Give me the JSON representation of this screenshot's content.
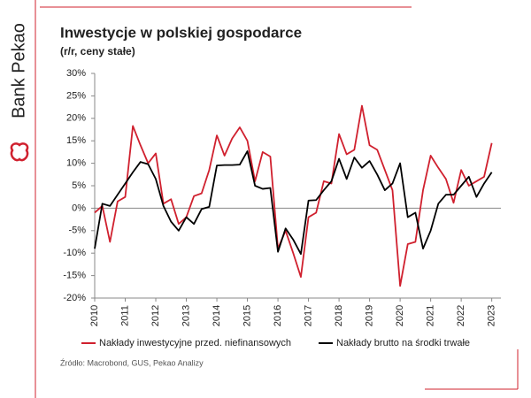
{
  "brand": "Bank Pekao",
  "chart_data": {
    "type": "line",
    "title": "Inwestycje w polskiej gospodarce",
    "subtitle": "(r/r, ceny stałe)",
    "source": "Źródło: Macrobond, GUS, Pekao Analizy",
    "x": [
      2010.0,
      2010.25,
      2010.5,
      2010.75,
      2011.0,
      2011.25,
      2011.5,
      2011.75,
      2012.0,
      2012.25,
      2012.5,
      2012.75,
      2013.0,
      2013.25,
      2013.5,
      2013.75,
      2014.0,
      2014.25,
      2014.5,
      2014.75,
      2015.0,
      2015.25,
      2015.5,
      2015.75,
      2016.0,
      2016.25,
      2016.5,
      2016.75,
      2017.0,
      2017.25,
      2017.5,
      2017.75,
      2018.0,
      2018.25,
      2018.5,
      2018.75,
      2019.0,
      2019.25,
      2019.5,
      2019.75,
      2020.0,
      2020.25,
      2020.5,
      2020.75,
      2021.0,
      2021.25,
      2021.5,
      2021.75,
      2022.0,
      2022.25,
      2022.5,
      2022.75,
      2023.0
    ],
    "series": [
      {
        "name": "Nakłady inwestycyjne przed. niefinansowych",
        "color": "#d0202e",
        "values": [
          -1,
          0.5,
          -7.5,
          1.5,
          2.5,
          18.3,
          14,
          10,
          12.2,
          1,
          2,
          -3.5,
          -2,
          2.7,
          3.3,
          8.5,
          16.2,
          11.7,
          15.5,
          18,
          15,
          6,
          12.5,
          11.5,
          -9,
          -5,
          -10,
          -15.3,
          -2,
          -1,
          6,
          5.5,
          16.5,
          12,
          13,
          22.8,
          14,
          13,
          8.5,
          4,
          -17.3,
          -8,
          -7.5,
          4,
          11.7,
          9,
          6.5,
          1.2,
          8.5,
          5,
          6,
          7,
          14.5
        ]
      },
      {
        "name": "Nakłady brutto na środki trwałe",
        "color": "#000000",
        "values": [
          -9,
          1,
          0.5,
          3,
          5.5,
          8,
          10.3,
          9.8,
          6.5,
          0.5,
          -3,
          -5,
          -2,
          -3.5,
          -0.2,
          0.3,
          9.5,
          9.6,
          9.6,
          9.7,
          12.7,
          5,
          4.3,
          4.5,
          -9.7,
          -4.5,
          -7,
          -10.2,
          1.7,
          1.8,
          4,
          6,
          11,
          6.5,
          11.3,
          9,
          10.5,
          7.5,
          4,
          5.5,
          10,
          -2,
          -1,
          -9,
          -5,
          1,
          3,
          3,
          5,
          7,
          2.5,
          5.5,
          8
        ]
      }
    ],
    "xlim": [
      2010,
      2023.3
    ],
    "xticks": [
      2010,
      2011,
      2012,
      2013,
      2014,
      2015,
      2016,
      2017,
      2018,
      2019,
      2020,
      2021,
      2022,
      2023
    ],
    "ylim": [
      -20,
      30
    ],
    "yticks": [
      {
        "value": -20,
        "label": "-20%"
      },
      {
        "value": -15,
        "label": "-15%"
      },
      {
        "value": -10,
        "label": "-10%"
      },
      {
        "value": -5,
        "label": "-5%"
      },
      {
        "value": 0,
        "label": "0%"
      },
      {
        "value": 5,
        "label": "5%"
      },
      {
        "value": 10,
        "label": "10%"
      },
      {
        "value": 15,
        "label": "15%"
      },
      {
        "value": 20,
        "label": "20%"
      },
      {
        "value": 25,
        "label": "25%"
      },
      {
        "value": 30,
        "label": "30%"
      }
    ],
    "legend": "bottom"
  }
}
